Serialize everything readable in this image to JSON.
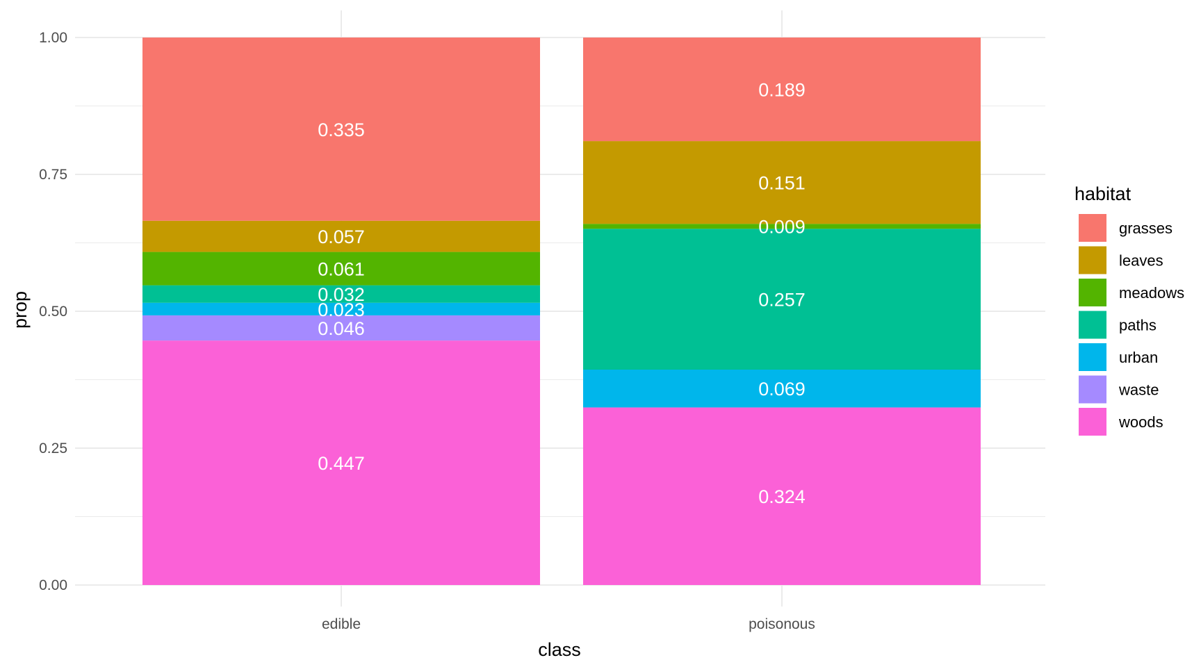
{
  "chart_data": {
    "type": "bar",
    "stacked": true,
    "title": "",
    "xlabel": "class",
    "ylabel": "prop",
    "ylim": [
      0,
      1
    ],
    "yticks": [
      "0.00",
      "0.25",
      "0.50",
      "0.75",
      "1.00"
    ],
    "grid": true,
    "categories": [
      "edible",
      "poisonous"
    ],
    "legend": {
      "title": "habitat",
      "position": "right",
      "entries": [
        "grasses",
        "leaves",
        "meadows",
        "paths",
        "urban",
        "waste",
        "woods"
      ]
    },
    "series": [
      {
        "name": "grasses",
        "color": "#F8766D",
        "values": [
          0.335,
          0.189
        ],
        "labels": [
          "0.335",
          "0.189"
        ]
      },
      {
        "name": "leaves",
        "color": "#C49A00",
        "values": [
          0.057,
          0.151
        ],
        "labels": [
          "0.057",
          "0.151"
        ]
      },
      {
        "name": "meadows",
        "color": "#53B400",
        "values": [
          0.061,
          0.009
        ],
        "labels": [
          "0.061",
          "0.009"
        ]
      },
      {
        "name": "paths",
        "color": "#00C094",
        "values": [
          0.032,
          0.257
        ],
        "labels": [
          "0.032",
          "0.257"
        ]
      },
      {
        "name": "urban",
        "color": "#00B6EB",
        "values": [
          0.023,
          0.069
        ],
        "labels": [
          "0.023",
          "0.069"
        ]
      },
      {
        "name": "waste",
        "color": "#A58AFF",
        "values": [
          0.046,
          0.0
        ],
        "labels": [
          "0.046",
          null
        ]
      },
      {
        "name": "woods",
        "color": "#FB61D7",
        "values": [
          0.447,
          0.324
        ],
        "labels": [
          "0.447",
          "0.324"
        ]
      }
    ]
  }
}
